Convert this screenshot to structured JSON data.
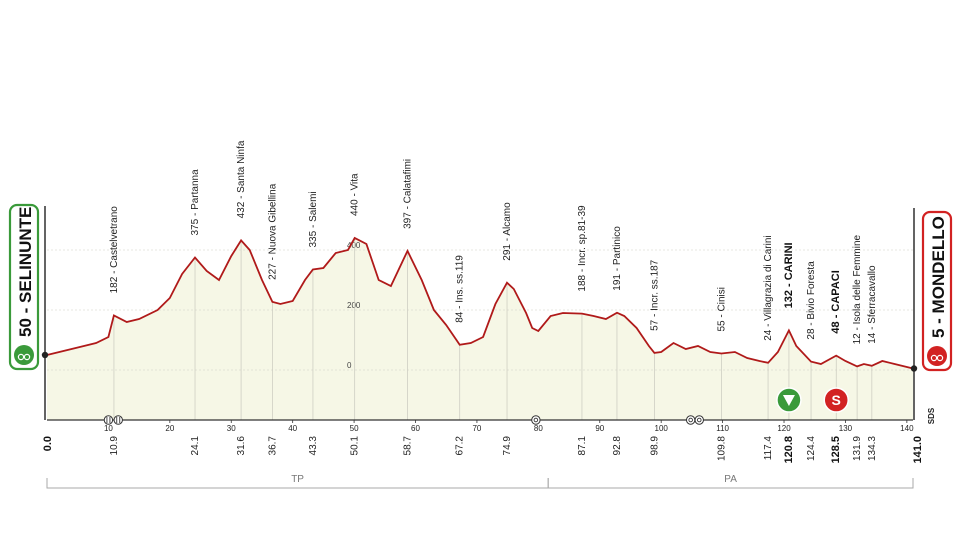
{
  "chart_data": {
    "type": "area",
    "xlim": [
      0,
      141
    ],
    "ylim": [
      0,
      460
    ],
    "x_ticks": [
      10,
      20,
      30,
      40,
      50,
      60,
      70,
      80,
      90,
      100,
      110,
      120,
      130,
      140
    ],
    "y_ticks": [
      {
        "value": 400,
        "label": "400"
      },
      {
        "value": 200,
        "label": "200"
      },
      {
        "value": 0,
        "label": "0"
      }
    ],
    "logo": "SDS",
    "profile": [
      [
        0,
        50
      ],
      [
        2,
        60
      ],
      [
        4,
        70
      ],
      [
        6,
        80
      ],
      [
        8,
        90
      ],
      [
        10,
        110
      ],
      [
        10.9,
        182
      ],
      [
        13,
        160
      ],
      [
        15,
        170
      ],
      [
        18,
        200
      ],
      [
        20,
        240
      ],
      [
        22,
        320
      ],
      [
        24.1,
        375
      ],
      [
        26,
        330
      ],
      [
        28,
        300
      ],
      [
        30,
        380
      ],
      [
        31.6,
        432
      ],
      [
        33,
        400
      ],
      [
        35,
        300
      ],
      [
        36.7,
        227
      ],
      [
        38,
        220
      ],
      [
        40,
        230
      ],
      [
        42,
        300
      ],
      [
        43.3,
        335
      ],
      [
        45,
        340
      ],
      [
        47,
        390
      ],
      [
        49,
        400
      ],
      [
        50.1,
        440
      ],
      [
        52,
        420
      ],
      [
        54,
        300
      ],
      [
        56,
        280
      ],
      [
        58.7,
        397
      ],
      [
        61,
        300
      ],
      [
        63,
        200
      ],
      [
        65,
        150
      ],
      [
        67.2,
        84
      ],
      [
        69,
        90
      ],
      [
        71,
        110
      ],
      [
        73,
        220
      ],
      [
        74.9,
        291
      ],
      [
        76,
        270
      ],
      [
        78,
        190
      ],
      [
        79,
        140
      ],
      [
        80,
        130
      ],
      [
        82,
        180
      ],
      [
        84,
        190
      ],
      [
        87.1,
        188
      ],
      [
        89,
        180
      ],
      [
        91,
        170
      ],
      [
        92.8,
        191
      ],
      [
        94,
        180
      ],
      [
        96,
        140
      ],
      [
        98,
        80
      ],
      [
        98.9,
        57
      ],
      [
        100,
        60
      ],
      [
        102,
        90
      ],
      [
        104,
        70
      ],
      [
        106,
        80
      ],
      [
        108,
        60
      ],
      [
        109.8,
        55
      ],
      [
        112,
        60
      ],
      [
        114,
        40
      ],
      [
        116,
        30
      ],
      [
        117.4,
        24
      ],
      [
        119,
        60
      ],
      [
        120.8,
        132
      ],
      [
        122,
        80
      ],
      [
        124.4,
        28
      ],
      [
        126,
        20
      ],
      [
        128.5,
        48
      ],
      [
        130,
        30
      ],
      [
        131.9,
        12
      ],
      [
        133,
        20
      ],
      [
        134.3,
        14
      ],
      [
        136,
        30
      ],
      [
        138,
        20
      ],
      [
        141,
        5
      ]
    ],
    "start": {
      "km": "0.0",
      "name": "50 - SELINUNTE",
      "color": "#3a9a3a"
    },
    "finish": {
      "km": "141.0",
      "name": "5 - MONDELLO",
      "color": "#d22222"
    },
    "waypoints": [
      {
        "x": 10.9,
        "km": "10.9",
        "alt": 182,
        "label": "182 - Castelvetrano",
        "bold": false
      },
      {
        "x": 24.1,
        "km": "24.1",
        "alt": 375,
        "label": "375 - Partanna",
        "bold": false
      },
      {
        "x": 31.6,
        "km": "31.6",
        "alt": 432,
        "label": "432 - Santa Ninfa",
        "bold": false
      },
      {
        "x": 36.7,
        "km": "36.7",
        "alt": 227,
        "label": "227 - Nuova Gibellina",
        "bold": false
      },
      {
        "x": 43.3,
        "km": "43.3",
        "alt": 335,
        "label": "335 - Salemi",
        "bold": false
      },
      {
        "x": 50.1,
        "km": "50.1",
        "alt": 440,
        "label": "440 - Vita",
        "bold": false
      },
      {
        "x": 58.7,
        "km": "58.7",
        "alt": 397,
        "label": "397 - Calatafimi",
        "bold": false
      },
      {
        "x": 67.2,
        "km": "67.2",
        "alt": 84,
        "label": "84 - Ins. ss.119",
        "bold": false
      },
      {
        "x": 74.9,
        "km": "74.9",
        "alt": 291,
        "label": "291 - Alcamo",
        "bold": false
      },
      {
        "x": 87.1,
        "km": "87.1",
        "alt": 188,
        "label": "188 - Incr. sp.81-39",
        "bold": false
      },
      {
        "x": 92.8,
        "km": "92.8",
        "alt": 191,
        "label": "191 - Partinico",
        "bold": false
      },
      {
        "x": 98.9,
        "km": "98.9",
        "alt": 57,
        "label": "57 - Incr. ss.187",
        "bold": false
      },
      {
        "x": 109.8,
        "km": "109.8",
        "alt": 55,
        "label": "55 - Cinisi",
        "bold": false
      },
      {
        "x": 117.4,
        "km": "117.4",
        "alt": 24,
        "label": "24 - Villagrazia di Carini",
        "bold": false
      },
      {
        "x": 120.8,
        "km": "120.8",
        "alt": 132,
        "label": "132 - CARINI",
        "bold": true
      },
      {
        "x": 124.4,
        "km": "124.4",
        "alt": 28,
        "label": "28 - Bivio Foresta",
        "bold": false
      },
      {
        "x": 128.5,
        "km": "128.5",
        "alt": 48,
        "label": "48 - CAPACI",
        "bold": true
      },
      {
        "x": 131.9,
        "km": "131.9",
        "alt": 12,
        "label": "12 - Isola delle Femmine",
        "bold": false
      },
      {
        "x": 134.3,
        "km": "134.3",
        "alt": 14,
        "label": "14 - Sferracavallo",
        "bold": false
      }
    ],
    "zones": [
      {
        "label": "TP",
        "from": 0,
        "to": 81.6
      },
      {
        "label": "PA",
        "from": 81.6,
        "to": 141
      }
    ],
    "markers": [
      {
        "type": "level-crossing",
        "x": 10
      },
      {
        "type": "level-crossing",
        "x": 11.6
      },
      {
        "type": "roundabout",
        "x": 79.6
      },
      {
        "type": "roundabout",
        "x": 104.8
      },
      {
        "type": "roundabout",
        "x": 106.2
      },
      {
        "type": "intermediate-sprint",
        "x": 120.8,
        "color": "#3a9a3a"
      },
      {
        "type": "sprint",
        "x": 128.5,
        "color": "#d22222"
      }
    ],
    "colors": {
      "profile_line": "#b01a1a",
      "profile_fill": "#f6f7e6",
      "start": "#3a9a3a",
      "finish": "#d22222"
    }
  }
}
